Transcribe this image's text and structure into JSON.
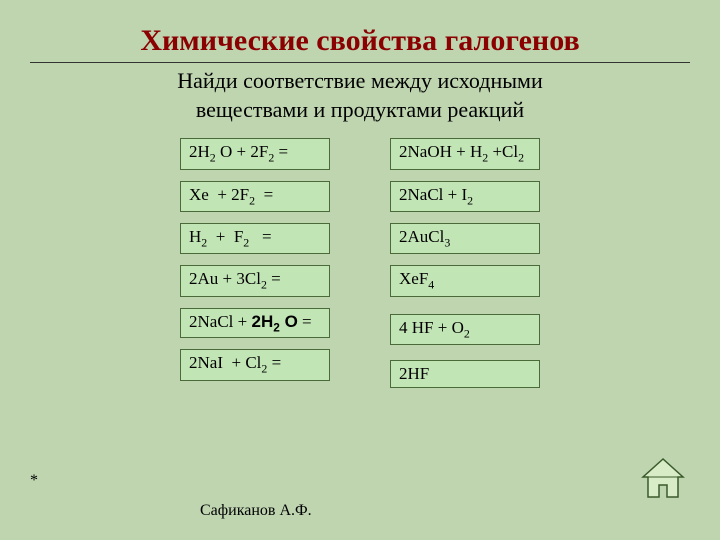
{
  "title": "Химические свойства галогенов",
  "subtitle_line1": "Найди соответствие между исходными",
  "subtitle_line2": "веществами и продуктами реакций",
  "left_boxes": [
    {
      "html": "2H<sub>2</sub> O + 2F<sub>2</sub> ="
    },
    {
      "html": "Xe &nbsp;+ 2F<sub>2</sub> &nbsp;="
    },
    {
      "html": "H<sub>2</sub> &nbsp;+ &nbsp;F<sub>2</sub> &nbsp;&nbsp;="
    },
    {
      "html": "2Au + 3Cl<sub>2</sub> ="
    },
    {
      "html": "2NaCl + <span style='font-family:Arial,sans-serif;font-weight:bold'>2H<sub>2</sub> O</span> ="
    },
    {
      "html": "2NaI &nbsp;+ Cl<sub>2</sub> ="
    }
  ],
  "right_boxes": [
    {
      "html": "2NaOH + H<sub>2</sub> +Cl<sub>2</sub>"
    },
    {
      "html": "2NaCl + I<sub>2</sub>"
    },
    {
      "html": "2AuCl<sub>3</sub>"
    },
    {
      "html": "XeF<sub>4</sub>"
    },
    {
      "html": "4 HF + O<sub>2</sub>"
    },
    {
      "html": "2HF"
    }
  ],
  "asterisk": "*",
  "author": "Сафиканов А.Ф.",
  "colors": {
    "background": "#bed5b0",
    "box_bg": "#c2e5b6",
    "box_border": "#4a6a3a",
    "title_color": "#8b0000"
  },
  "home_icon": {
    "stroke": "#3a5a2a",
    "fill": "#d8ecc8"
  }
}
